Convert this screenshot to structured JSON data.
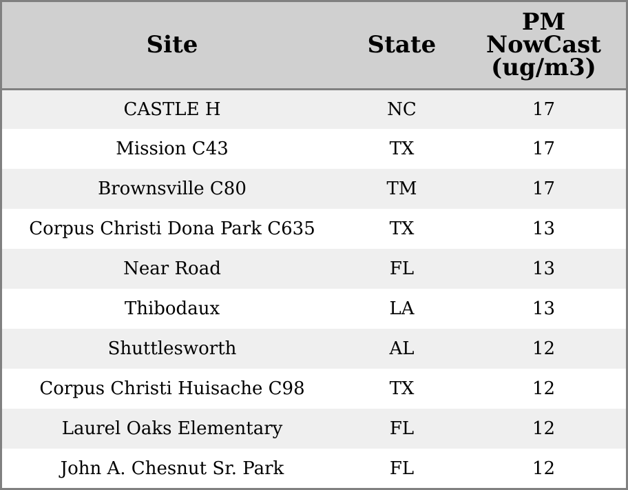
{
  "chart_data": {
    "type": "table",
    "columns": [
      "Site",
      "State",
      "PM NowCast (ug/m3)"
    ],
    "header_lines": {
      "site": [
        "Site"
      ],
      "state": [
        "State"
      ],
      "pm": [
        "PM",
        "NowCast",
        "(ug/m3)"
      ]
    },
    "rows": [
      {
        "site": "CASTLE H",
        "state": "NC",
        "pm": 17
      },
      {
        "site": "Mission C43",
        "state": "TX",
        "pm": 17
      },
      {
        "site": "Brownsville C80",
        "state": "TM",
        "pm": 17
      },
      {
        "site": "Corpus Christi Dona Park C635",
        "state": "TX",
        "pm": 13
      },
      {
        "site": "Near Road",
        "state": "FL",
        "pm": 13
      },
      {
        "site": "Thibodaux",
        "state": "LA",
        "pm": 13
      },
      {
        "site": "Shuttlesworth",
        "state": "AL",
        "pm": 12
      },
      {
        "site": "Corpus Christi Huisache C98",
        "state": "TX",
        "pm": 12
      },
      {
        "site": "Laurel Oaks Elementary",
        "state": "FL",
        "pm": 12
      },
      {
        "site": "John A. Chesnut Sr. Park",
        "state": "FL",
        "pm": 12
      }
    ],
    "colors": {
      "header_bg": "#d0d0d0",
      "row_odd_bg": "#efefef",
      "row_even_bg": "#ffffff",
      "border": "#808080"
    }
  }
}
